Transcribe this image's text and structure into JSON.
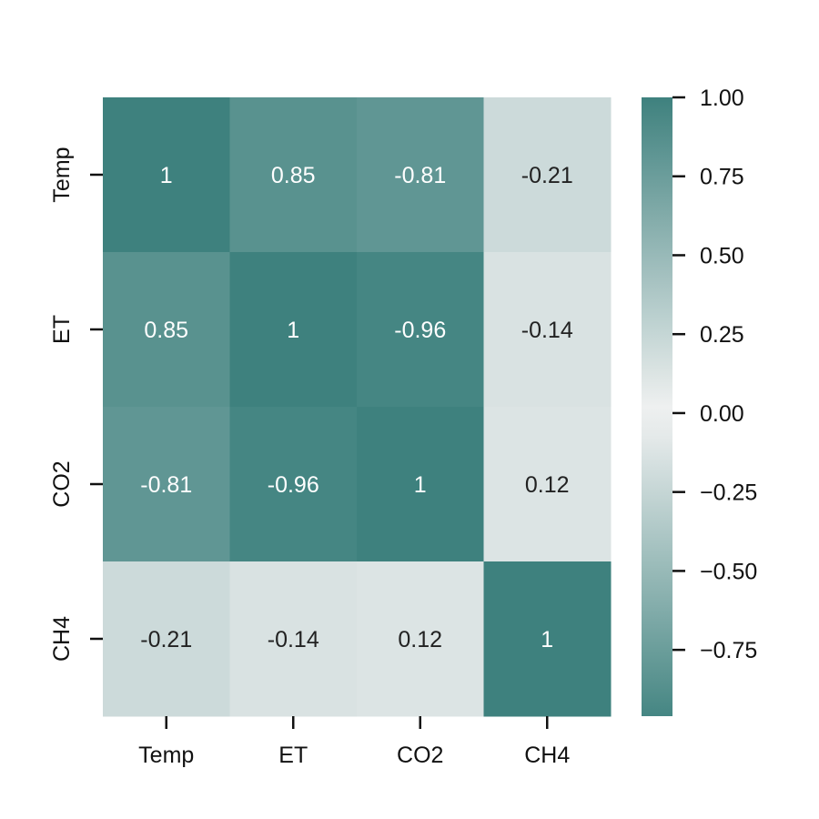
{
  "chart_data": {
    "type": "heatmap",
    "x_categories": [
      "Temp",
      "ET",
      "CO2",
      "CH4"
    ],
    "y_categories": [
      "Temp",
      "ET",
      "CO2",
      "CH4"
    ],
    "values": [
      [
        1,
        0.85,
        -0.81,
        -0.21
      ],
      [
        0.85,
        1,
        -0.96,
        -0.14
      ],
      [
        -0.81,
        -0.96,
        1,
        0.12
      ],
      [
        -0.21,
        -0.14,
        0.12,
        1
      ]
    ],
    "cell_labels": [
      [
        "1",
        "0.85",
        "-0.81",
        "-0.21"
      ],
      [
        "0.85",
        "1",
        "-0.96",
        "-0.14"
      ],
      [
        "-0.81",
        "-0.96",
        "1",
        "0.12"
      ],
      [
        "-0.21",
        "-0.14",
        "0.12",
        "1"
      ]
    ],
    "colorbar": {
      "range": [
        -0.96,
        1.0
      ],
      "ticks": [
        1.0,
        0.75,
        0.5,
        0.25,
        0.0,
        -0.25,
        -0.5,
        -0.75
      ],
      "tick_labels": [
        "1.00",
        "0.75",
        "0.50",
        "0.25",
        "0.00",
        "−0.25",
        "−0.50",
        "−0.75"
      ]
    },
    "colormap": {
      "type": "diverging",
      "center": 0,
      "center_color": "#f2f2f2",
      "end_color": "#3e817e",
      "symmetric": true
    },
    "text_colors": {
      "dark": "#222222",
      "light": "#ffffff"
    },
    "grid": false,
    "legend": "colorbar-right",
    "title": "",
    "xlabel": "",
    "ylabel": ""
  }
}
